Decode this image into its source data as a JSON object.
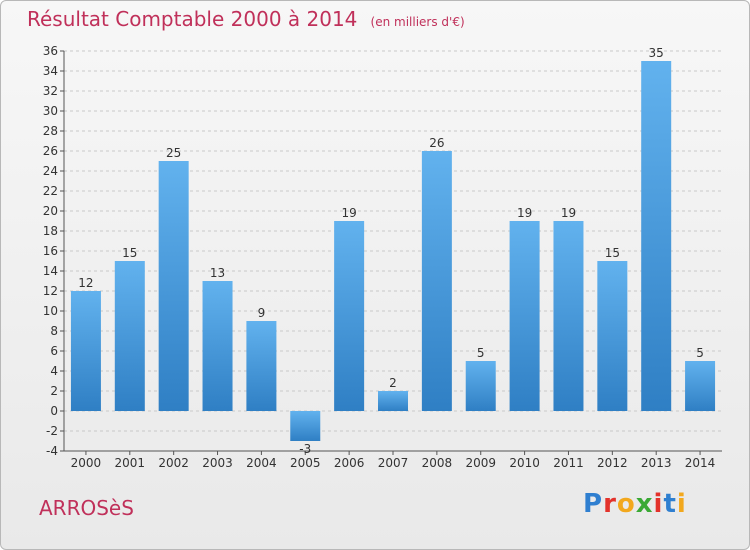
{
  "header": {
    "title": "Résultat Comptable 2000 à 2014",
    "subtitle": "(en milliers d'€)"
  },
  "footer": {
    "commune": "ARROSèS",
    "logo_letters": [
      {
        "ch": "P",
        "color": "#2f7fd0"
      },
      {
        "ch": "r",
        "color": "#e3322b"
      },
      {
        "ch": "o",
        "color": "#f2a81d"
      },
      {
        "ch": "x",
        "color": "#3aa935"
      },
      {
        "ch": "i",
        "color": "#e3322b"
      },
      {
        "ch": "t",
        "color": "#2f7fd0"
      },
      {
        "ch": "i",
        "color": "#f2a81d"
      }
    ]
  },
  "chart_data": {
    "type": "bar",
    "categories": [
      "2000",
      "2001",
      "2002",
      "2003",
      "2004",
      "2005",
      "2006",
      "2007",
      "2008",
      "2009",
      "2010",
      "2011",
      "2012",
      "2013",
      "2014"
    ],
    "values": [
      12,
      15,
      25,
      13,
      9,
      -3,
      19,
      2,
      26,
      5,
      19,
      19,
      15,
      35,
      5
    ],
    "ylim": [
      -4,
      36
    ],
    "yticks": [
      -4,
      -2,
      0,
      2,
      4,
      6,
      8,
      10,
      12,
      14,
      16,
      18,
      20,
      22,
      24,
      26,
      28,
      30,
      32,
      34,
      36
    ],
    "grid": true,
    "bar_color": "#3d8fd6",
    "bar_color_light": "#62b2ee",
    "accent": "#c0305a"
  }
}
